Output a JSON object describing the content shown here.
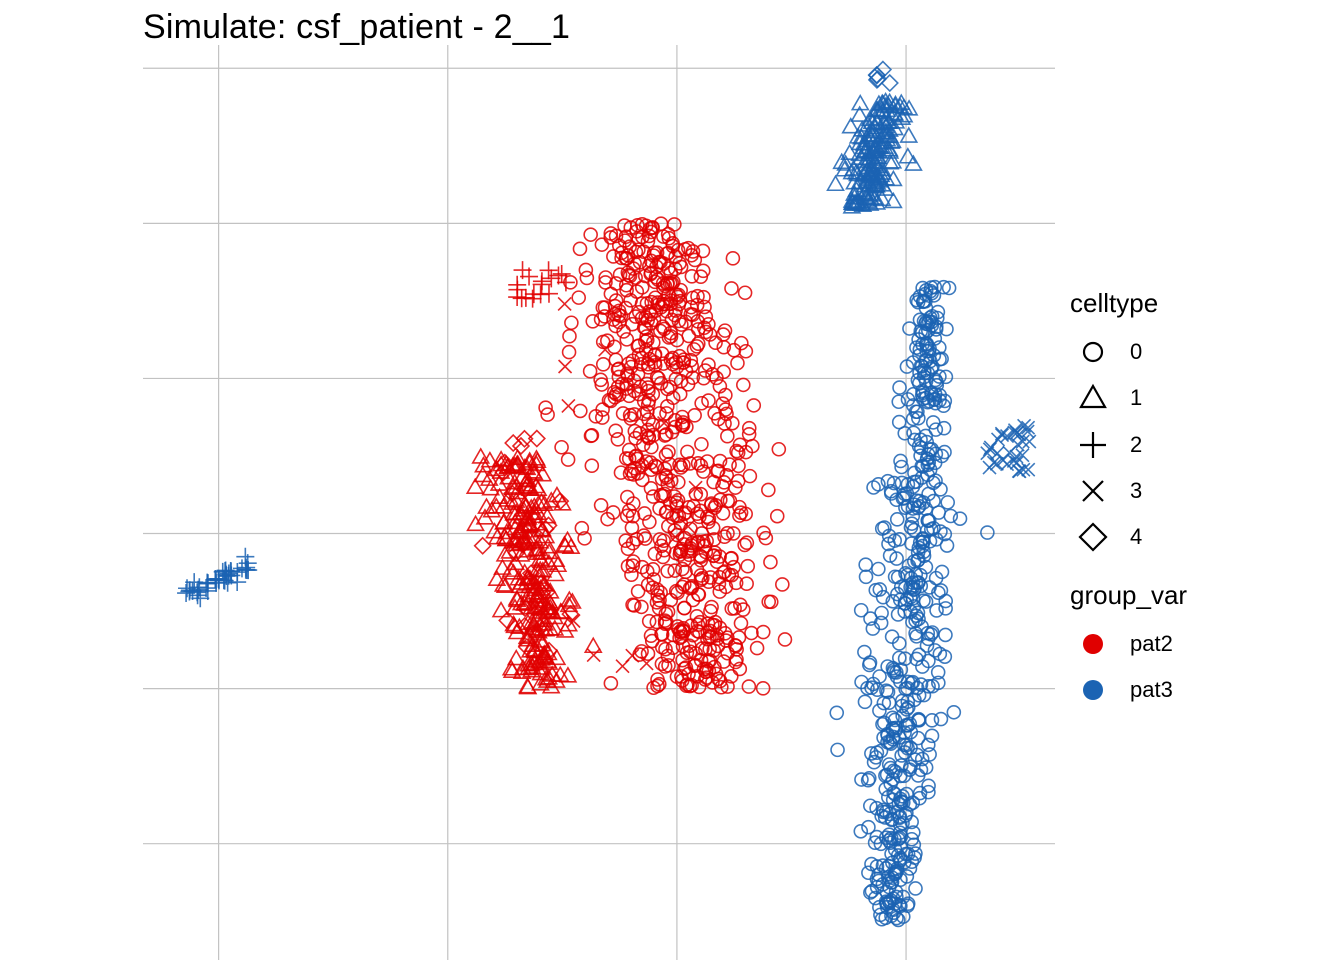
{
  "title": "Simulate: csf_patient - 2__1",
  "colors": {
    "pat2": "#e00000",
    "pat3": "#1b63b3",
    "grid": "#c2c2c2",
    "text": "#000000"
  },
  "legend": {
    "celltype": {
      "title": "celltype",
      "items": [
        {
          "label": "0",
          "shape": "circle"
        },
        {
          "label": "1",
          "shape": "triangle"
        },
        {
          "label": "2",
          "shape": "plus"
        },
        {
          "label": "3",
          "shape": "cross"
        },
        {
          "label": "4",
          "shape": "diamond"
        }
      ]
    },
    "group_var": {
      "title": "group_var",
      "items": [
        {
          "label": "pat2",
          "color": "#e00000"
        },
        {
          "label": "pat3",
          "color": "#1b63b3"
        }
      ]
    }
  },
  "chart_data": {
    "type": "scatter",
    "title": "Simulate: csf_patient - 2__1",
    "xlabel": "",
    "ylabel": "",
    "xlim": [
      -3.3,
      36.5
    ],
    "ylim": [
      -7.5,
      51.5
    ],
    "grid": true,
    "axis_tick_labels": false,
    "legend_position": "right",
    "shape_variable": "celltype",
    "color_variable": "group_var",
    "clusters": [
      {
        "group_var": "pat2",
        "celltype": "0",
        "n": 700,
        "x": [
          17.5,
          22.0
        ],
        "y": [
          10,
          40
        ],
        "approx": true
      },
      {
        "group_var": "pat2",
        "celltype": "1",
        "n": 260,
        "x": [
          12.5,
          15.0
        ],
        "y": [
          10,
          25
        ],
        "approx": true
      },
      {
        "group_var": "pat2",
        "celltype": "2",
        "n": 18,
        "x": [
          12.8,
          15.3
        ],
        "y": [
          34,
          37
        ],
        "approx": true
      },
      {
        "group_var": "pat2",
        "celltype": "3",
        "n": 14,
        "x": [
          14,
          21
        ],
        "y": [
          10,
          38
        ],
        "approx": true
      },
      {
        "group_var": "pat2",
        "celltype": "4",
        "n": 30,
        "x": [
          12.0,
          15.0
        ],
        "y": [
          11,
          27
        ],
        "approx": true
      },
      {
        "group_var": "pat3",
        "celltype": "0",
        "n": 520,
        "x": [
          29.0,
          32.5
        ],
        "y": [
          -5,
          36
        ],
        "approx": true
      },
      {
        "group_var": "pat3",
        "celltype": "1",
        "n": 170,
        "x": [
          27.5,
          30.5
        ],
        "y": [
          41,
          48
        ],
        "approx": true
      },
      {
        "group_var": "pat3",
        "celltype": "2",
        "n": 45,
        "x": [
          -1.5,
          1.5
        ],
        "y": [
          16,
          18
        ],
        "approx": true
      },
      {
        "group_var": "pat3",
        "celltype": "3",
        "n": 32,
        "x": [
          33.5,
          35.5
        ],
        "y": [
          24,
          27
        ],
        "approx": true
      },
      {
        "group_var": "pat3",
        "celltype": "4",
        "n": 6,
        "x": [
          28.5,
          29.3
        ],
        "y": [
          49,
          50
        ],
        "approx": true
      }
    ]
  }
}
